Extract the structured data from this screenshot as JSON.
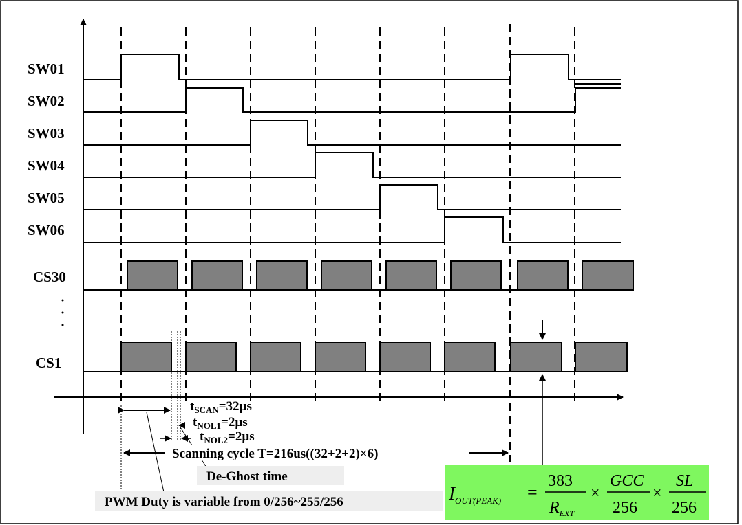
{
  "diagram": {
    "signals": [
      {
        "id": "sw01",
        "label": "SW01"
      },
      {
        "id": "sw02",
        "label": "SW02"
      },
      {
        "id": "sw03",
        "label": "SW03"
      },
      {
        "id": "sw04",
        "label": "SW04"
      },
      {
        "id": "sw05",
        "label": "SW05"
      },
      {
        "id": "sw06",
        "label": "SW06"
      },
      {
        "id": "cs30",
        "label": "CS30"
      },
      {
        "id": "cs1",
        "label": "CS1"
      }
    ],
    "ellipsis": "⋮",
    "annotations": {
      "tscan": {
        "t": "t",
        "sub": "SCAN",
        "rest": "=32µs"
      },
      "tnol1": {
        "t": "t",
        "sub": "NOL1",
        "rest": "=2µs"
      },
      "tnol2": {
        "t": "t",
        "sub": "NOL2",
        "rest": "=2µs"
      },
      "scanning_cycle": "Scanning cycle T=216us((32+2+2)×6)",
      "deghost": "De-Ghost time",
      "pwm_duty": "PWM Duty is variable from 0/256~255/256"
    },
    "formula": {
      "lhs_main": "I",
      "lhs_sub": "OUT(PEAK)",
      "equals": "=",
      "frac1_num": "383",
      "frac1_den_main": "R",
      "frac1_den_sub": "EXT",
      "times": "×",
      "frac2_num": "GCC",
      "frac2_den": "256",
      "frac3_num": "SL",
      "frac3_den": "256",
      "bg_color": "#7ff75f"
    }
  }
}
